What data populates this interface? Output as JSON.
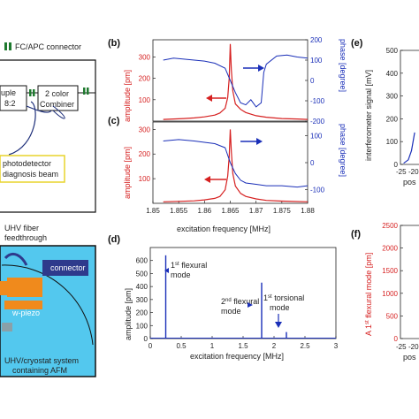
{
  "schematic": {
    "connector_legend": "FC/APC connector",
    "coupler_text_1": "uple",
    "coupler_text_2": "8:2",
    "combiner_line_1": "2 color",
    "combiner_line_2": "Combiner",
    "photodetector_line_1": "photodetector",
    "photodetector_line_2": "diagnosis beam",
    "feedthrough_line_1": "UHV fiber",
    "feedthrough_line_2": "feedthrough",
    "connector_label": "connector",
    "wpiezo_label": "w-piezo",
    "system_line_1": "UHV/cryostat system",
    "system_line_2": "containing AFM"
  },
  "panels": {
    "b": "(b)",
    "c": "(c)",
    "d": "(d)",
    "e": "(e)",
    "f": "(f)"
  },
  "axis_text": {
    "bc_xlabel": "excitation frequency [MHz]",
    "bc_ylabel_left": "amplitude [pm]",
    "bc_ylabel_right": "phase [degree]",
    "bc_xticks": [
      "1.85",
      "1.855",
      "1.86",
      "1.865",
      "1.87",
      "1.875",
      "1.88"
    ],
    "b_yticks_left": [
      "100",
      "200",
      "300"
    ],
    "b_yticks_right": [
      "200",
      "100",
      "0",
      "-100",
      "-200"
    ],
    "c_yticks_left": [
      "100",
      "200",
      "300"
    ],
    "c_yticks_right": [
      "100",
      "0",
      "-100"
    ],
    "d_xlabel": "excitation frequency [MHz]",
    "d_ylabel": "amplitude [pm]",
    "d_yticks": [
      "0",
      "100",
      "200",
      "300",
      "400",
      "500",
      "600"
    ],
    "d_xticks": [
      "0",
      "0.5",
      "1",
      "1.5",
      "2",
      "2.5",
      "3"
    ],
    "d_ann1_a": "1",
    "d_ann1_sup": "st",
    "d_ann1_b": " flexural",
    "d_ann1_c": "mode",
    "d_ann2_a": "2",
    "d_ann2_sup": "nd",
    "d_ann2_b": " flexural",
    "d_ann2_c": "mode",
    "d_ann3_a": "1",
    "d_ann3_sup": "st",
    "d_ann3_b": " torsional",
    "d_ann3_c": "mode",
    "e_ylabel": "interferometer signal [mV]",
    "e_yticks": [
      "0",
      "100",
      "200",
      "300",
      "400",
      "500"
    ],
    "e_xticks": [
      "-25",
      "-20"
    ],
    "e_xlabel_partial": "pos",
    "f_ylabel_a": "A 1",
    "f_ylabel_sup": "st",
    "f_ylabel_b": " flexural mode [pm]",
    "f_yticks": [
      "0",
      "500",
      "1000",
      "1500",
      "2000",
      "2500"
    ],
    "f_xticks": [
      "-25",
      "-20"
    ],
    "f_xlabel_partial": "pos"
  },
  "chart_data": [
    {
      "panel": "(b)",
      "type": "line",
      "xlabel": "excitation frequency [MHz]",
      "ylabel": "amplitude [pm]",
      "y2label": "phase [degree]",
      "xlim": [
        1.85,
        1.88
      ],
      "ylim": [
        0,
        380
      ],
      "y2lim": [
        -200,
        200
      ],
      "series": [
        {
          "color": "#d62020",
          "axis": "left",
          "x": [
            1.852,
            1.854,
            1.856,
            1.858,
            1.86,
            1.862,
            1.863,
            1.864,
            1.8645,
            1.8648,
            1.865,
            1.8652,
            1.8655,
            1.866,
            1.867,
            1.868,
            1.87,
            1.872,
            1.875,
            1.878,
            1.88
          ],
          "y": [
            8,
            10,
            12,
            15,
            20,
            28,
            38,
            60,
            110,
            200,
            360,
            240,
            140,
            80,
            55,
            40,
            25,
            18,
            12,
            10,
            8
          ]
        },
        {
          "color": "#1a2fb8",
          "axis": "right",
          "x": [
            1.852,
            1.854,
            1.856,
            1.858,
            1.86,
            1.862,
            1.864,
            1.865,
            1.866,
            1.867,
            1.868,
            1.869,
            1.87,
            1.871,
            1.8715,
            1.872,
            1.874,
            1.876,
            1.878,
            1.88
          ],
          "y": [
            100,
            110,
            105,
            100,
            95,
            85,
            60,
            0,
            -60,
            -110,
            -120,
            -95,
            -130,
            -110,
            40,
            80,
            120,
            125,
            115,
            110
          ]
        }
      ]
    },
    {
      "panel": "(c)",
      "type": "line",
      "xlabel": "excitation frequency [MHz]",
      "ylabel": "amplitude [pm]",
      "y2label": "phase [degree]",
      "xlim": [
        1.85,
        1.88
      ],
      "ylim": [
        0,
        330
      ],
      "y2lim": [
        -150,
        150
      ],
      "series": [
        {
          "color": "#d62020",
          "axis": "left",
          "x": [
            1.852,
            1.855,
            1.858,
            1.86,
            1.862,
            1.863,
            1.864,
            1.8645,
            1.8648,
            1.865,
            1.8652,
            1.8655,
            1.866,
            1.867,
            1.868,
            1.87,
            1.872,
            1.875,
            1.88
          ],
          "y": [
            6,
            8,
            10,
            14,
            20,
            28,
            55,
            110,
            190,
            300,
            210,
            120,
            70,
            40,
            28,
            18,
            12,
            9,
            6
          ]
        },
        {
          "color": "#1a2fb8",
          "axis": "right",
          "x": [
            1.852,
            1.855,
            1.858,
            1.86,
            1.862,
            1.864,
            1.865,
            1.866,
            1.867,
            1.868,
            1.87,
            1.872,
            1.875,
            1.878,
            1.88
          ],
          "y": [
            80,
            85,
            80,
            75,
            70,
            55,
            0,
            -40,
            -65,
            -75,
            -80,
            -85,
            -85,
            -90,
            -85
          ]
        }
      ]
    },
    {
      "panel": "(d)",
      "type": "line",
      "xlabel": "excitation frequency [MHz]",
      "ylabel": "amplitude [pm]",
      "xlim": [
        0,
        3
      ],
      "ylim": [
        0,
        700
      ],
      "series": [
        {
          "color": "#1a2fb8",
          "x": [
            0.25,
            1.8,
            2.2
          ],
          "y": [
            640,
            430,
            50
          ]
        }
      ]
    },
    {
      "panel": "(e)",
      "type": "line",
      "ylabel": "interferometer signal [mV]",
      "ylim": [
        0,
        500
      ],
      "series": [
        {
          "color": "#1a2fb8",
          "x": [
            -25,
            -22,
            -20,
            -18
          ],
          "y": [
            5,
            20,
            60,
            140
          ]
        }
      ]
    },
    {
      "panel": "(f)",
      "type": "line",
      "ylabel": "A 1st flexural mode [pm]",
      "ylim": [
        0,
        2500
      ],
      "series": []
    }
  ],
  "colors": {
    "red": "#d62020",
    "blue": "#1a2fb8",
    "light_blue_bg": "#53c8ee",
    "coupler_green": "#1f7a2f",
    "connector_box": "#2e3a8c",
    "piezo_orange": "#f08a1c",
    "photodetector_border": "#e9d42c",
    "fiber_blue": "#1e2f7a"
  }
}
